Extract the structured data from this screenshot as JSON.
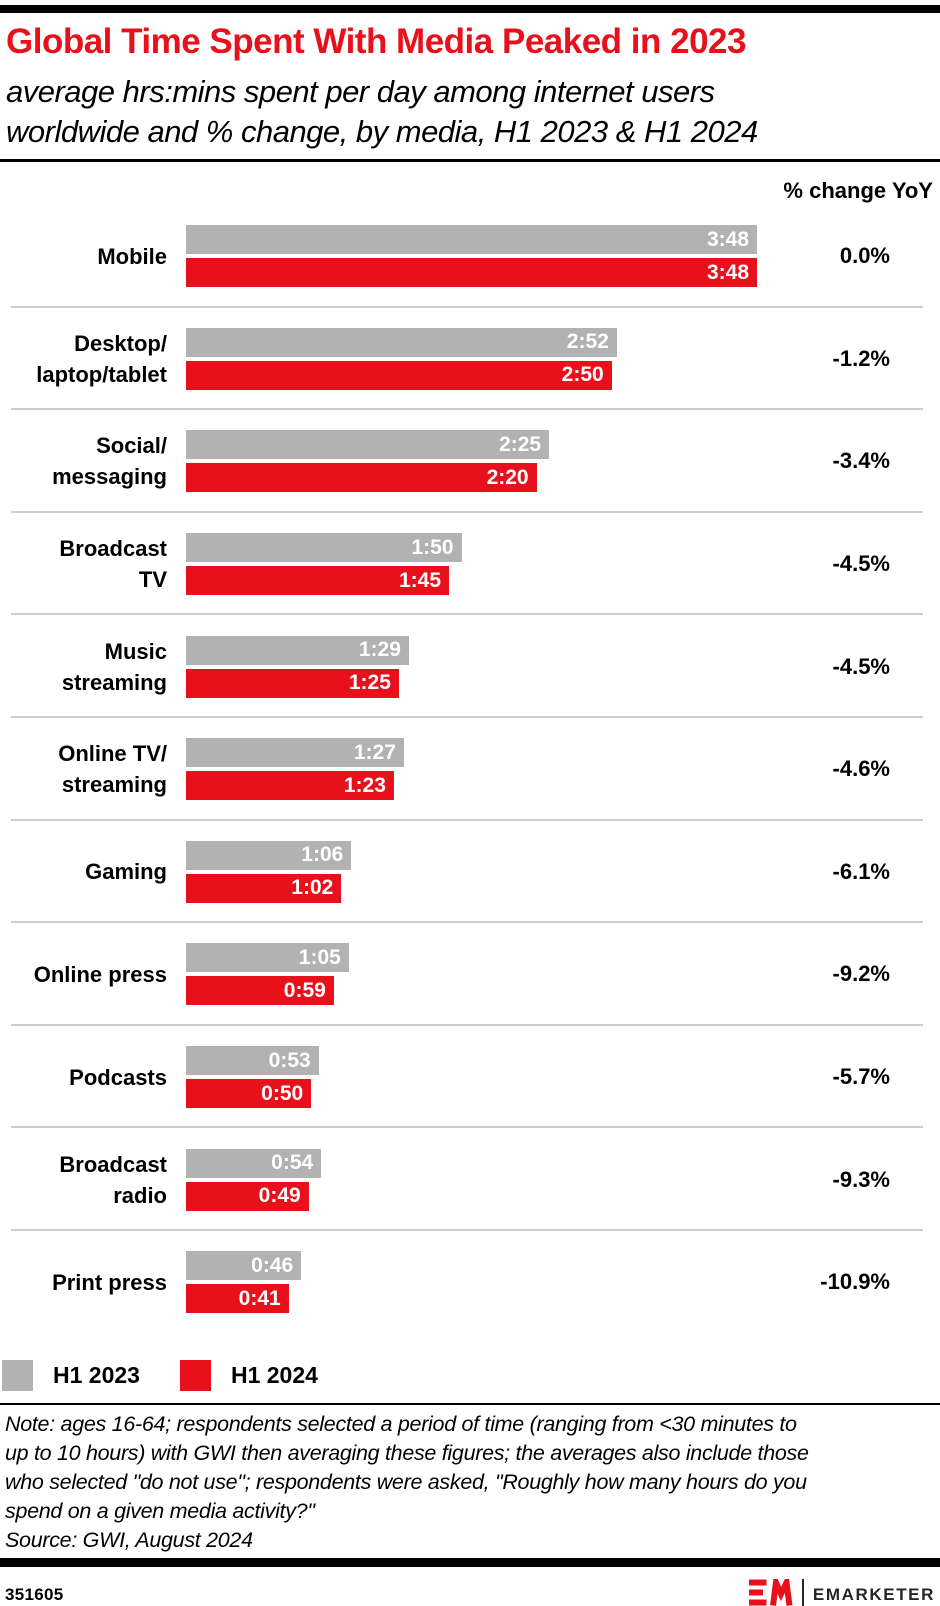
{
  "title": "Global Time Spent With Media Peaked in 2023",
  "subtitle": "average hrs:mins spent per day among internet users\nworldwide and % change, by media, H1 2023 & H1 2024",
  "column_header": "% change YoY",
  "colors": {
    "accent_red": "#E8101B",
    "bar_gray": "#B2B2B2",
    "divider_gray": "#CDCDCD",
    "black": "#000000"
  },
  "chart_data": {
    "type": "bar",
    "orientation": "horizontal",
    "unit": "average hrs:mins spent per day",
    "x_max_minutes": 228,
    "grid": false,
    "legend_position": "bottom",
    "series": [
      {
        "name": "H1 2023",
        "color": "#B2B2B2"
      },
      {
        "name": "H1 2024",
        "color": "#E8101B"
      }
    ],
    "categories": [
      "Mobile",
      "Desktop/laptop/tablet",
      "Social/messaging",
      "Broadcast TV",
      "Music streaming",
      "Online TV/streaming",
      "Gaming",
      "Online press",
      "Podcasts",
      "Broadcast radio",
      "Print press"
    ],
    "rows": [
      {
        "label": "Mobile",
        "h1_2023": "3:48",
        "h1_2023_minutes": 228,
        "h1_2024": "3:48",
        "h1_2024_minutes": 228,
        "pct_change": "0.0%"
      },
      {
        "label": "Desktop/\nlaptop/tablet",
        "h1_2023": "2:52",
        "h1_2023_minutes": 172,
        "h1_2024": "2:50",
        "h1_2024_minutes": 170,
        "pct_change": "-1.2%"
      },
      {
        "label": "Social/\nmessaging",
        "h1_2023": "2:25",
        "h1_2023_minutes": 145,
        "h1_2024": "2:20",
        "h1_2024_minutes": 140,
        "pct_change": "-3.4%"
      },
      {
        "label": "Broadcast\nTV",
        "h1_2023": "1:50",
        "h1_2023_minutes": 110,
        "h1_2024": "1:45",
        "h1_2024_minutes": 105,
        "pct_change": "-4.5%"
      },
      {
        "label": "Music\nstreaming",
        "h1_2023": "1:29",
        "h1_2023_minutes": 89,
        "h1_2024": "1:25",
        "h1_2024_minutes": 85,
        "pct_change": "-4.5%"
      },
      {
        "label": "Online TV/\nstreaming",
        "h1_2023": "1:27",
        "h1_2023_minutes": 87,
        "h1_2024": "1:23",
        "h1_2024_minutes": 83,
        "pct_change": "-4.6%"
      },
      {
        "label": "Gaming",
        "h1_2023": "1:06",
        "h1_2023_minutes": 66,
        "h1_2024": "1:02",
        "h1_2024_minutes": 62,
        "pct_change": "-6.1%"
      },
      {
        "label": "Online press",
        "h1_2023": "1:05",
        "h1_2023_minutes": 65,
        "h1_2024": "0:59",
        "h1_2024_minutes": 59,
        "pct_change": "-9.2%"
      },
      {
        "label": "Podcasts",
        "h1_2023": "0:53",
        "h1_2023_minutes": 53,
        "h1_2024": "0:50",
        "h1_2024_minutes": 50,
        "pct_change": "-5.7%"
      },
      {
        "label": "Broadcast\nradio",
        "h1_2023": "0:54",
        "h1_2023_minutes": 54,
        "h1_2024": "0:49",
        "h1_2024_minutes": 49,
        "pct_change": "-9.3%"
      },
      {
        "label": "Print press",
        "h1_2023": "0:46",
        "h1_2023_minutes": 46,
        "h1_2024": "0:41",
        "h1_2024_minutes": 41,
        "pct_change": "-10.9%"
      }
    ]
  },
  "legend": [
    {
      "label": "H1 2023",
      "color": "#B2B2B2"
    },
    {
      "label": "H1 2024",
      "color": "#E8101B"
    }
  ],
  "note": "Note: ages 16-64; respondents selected a period of time (ranging from <30 minutes to\nup to 10 hours) with GWI then averaging these figures; the averages also include those\nwho selected \"do not use\"; respondents were asked, \"Roughly how many hours do you\nspend on a given media activity?\"",
  "source": "Source: GWI, August 2024",
  "footer": {
    "chart_id": "351605",
    "logo_mark": "EM",
    "brand": "EMARKETER"
  }
}
